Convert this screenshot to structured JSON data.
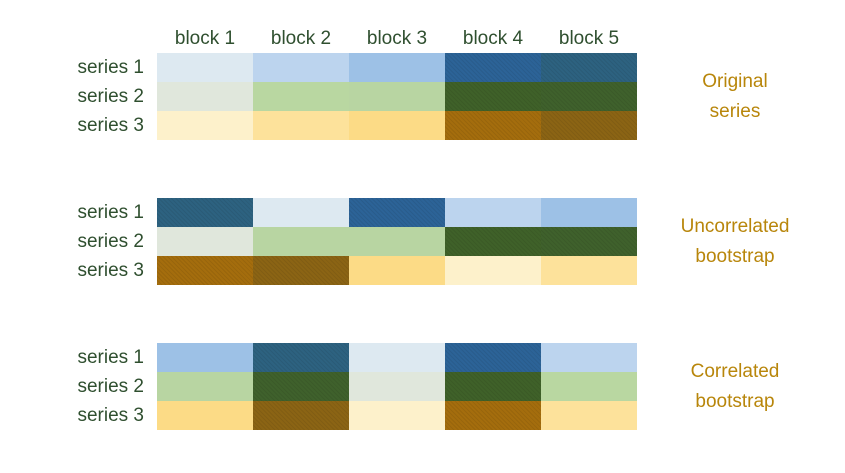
{
  "blocks": [
    "block 1",
    "block 2",
    "block 3",
    "block 4",
    "block 5"
  ],
  "series_labels": [
    "series 1",
    "series 2",
    "series 3"
  ],
  "colors": {
    "text_dark_green": "#2f4f2f",
    "caption_gold": "#b8860b",
    "s1": [
      "#dde9f1",
      "#bcd4ee",
      "#9dc1e6",
      "#2c6397",
      "#2d6280"
    ],
    "s2": [
      "#e0e7dc",
      "#b9d7a1",
      "#b8d5a2",
      "#3f6129",
      "#3f612c"
    ],
    "s3": [
      "#fdf1cb",
      "#fde29b",
      "#fcdb86",
      "#a46d0d",
      "#8b6414"
    ]
  },
  "sections": [
    {
      "id": "original",
      "caption_lines": [
        "Original",
        "series"
      ],
      "rows": [
        [
          "s1-1",
          "s1-2",
          "s1-3",
          "s1-4",
          "s1-5"
        ],
        [
          "s2-1",
          "s2-2",
          "s2-3",
          "s2-4",
          "s2-5"
        ],
        [
          "s3-1",
          "s3-2",
          "s3-3",
          "s3-4",
          "s3-5"
        ]
      ]
    },
    {
      "id": "uncorrelated",
      "caption_lines": [
        "Uncorrelated",
        "bootstrap"
      ],
      "rows": [
        [
          "s1-5",
          "s1-1",
          "s1-4",
          "s1-2",
          "s1-3"
        ],
        [
          "s2-1",
          "s2-3",
          "s2-3",
          "s2-4",
          "s2-5"
        ],
        [
          "s3-4",
          "s3-5",
          "s3-3",
          "s3-1",
          "s3-2"
        ]
      ]
    },
    {
      "id": "correlated",
      "caption_lines": [
        "Correlated",
        "bootstrap"
      ],
      "rows": [
        [
          "s1-3",
          "s1-5",
          "s1-1",
          "s1-4",
          "s1-2"
        ],
        [
          "s2-3",
          "s2-5",
          "s2-1",
          "s2-4",
          "s2-2"
        ],
        [
          "s3-3",
          "s3-5",
          "s3-1",
          "s3-4",
          "s3-2"
        ]
      ]
    }
  ]
}
